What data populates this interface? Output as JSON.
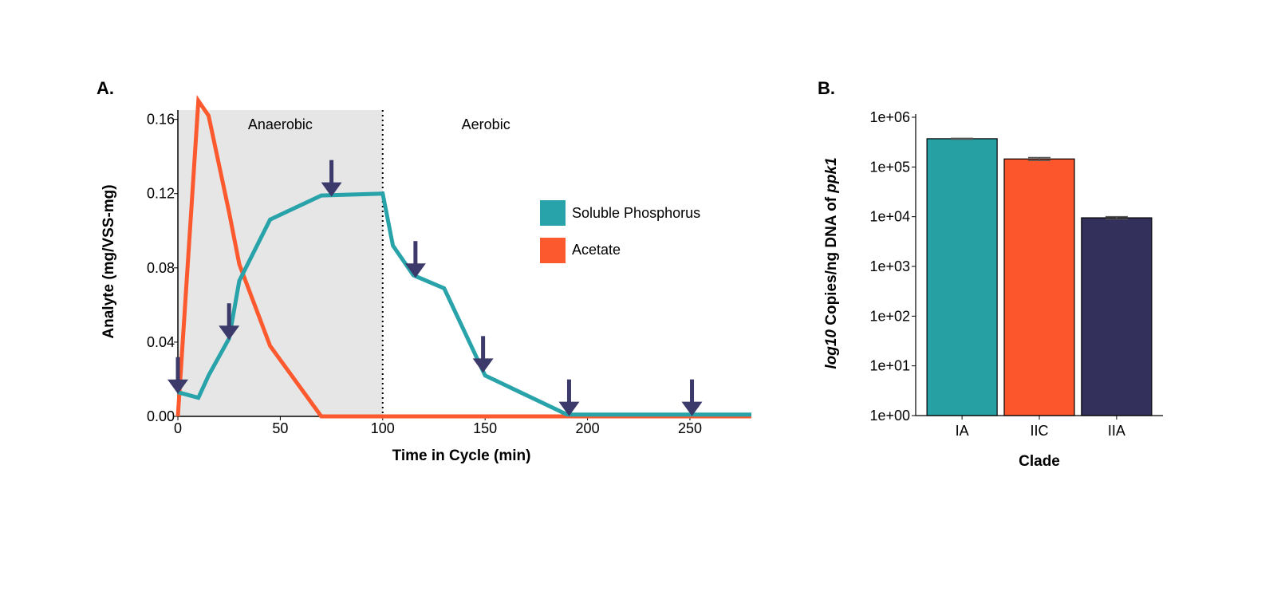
{
  "colors": {
    "phosphorus": "#29a3aa",
    "acetate": "#fc5a2e",
    "arrow": "#3b3a6b",
    "anaerobic_shade": "#e6e6e6",
    "bar_IA": "#26a0a3",
    "bar_IIC": "#fc562c",
    "bar_IIA": "#33305c"
  },
  "chart_data": [
    {
      "panel": "A.",
      "type": "line",
      "xlabel": "Time in Cycle (min)",
      "ylabel": "Analyte (mg/VSS-mg)",
      "xlim": [
        0,
        280
      ],
      "ylim": [
        0,
        0.165
      ],
      "xticks": [
        0,
        50,
        100,
        150,
        200,
        250
      ],
      "xtick_labels": [
        "0",
        "50",
        "100",
        "150",
        "200",
        "250"
      ],
      "yticks": [
        0,
        0.04,
        0.08,
        0.12,
        0.16
      ],
      "ytick_labels": [
        "0.00",
        "0.04",
        "0.08",
        "0.12",
        "0.16"
      ],
      "regions": [
        {
          "label": "Anaerobic",
          "x_range": [
            0,
            100
          ],
          "shaded": true
        },
        {
          "label": "Aerobic",
          "x_range": [
            100,
            280
          ],
          "shaded": false
        }
      ],
      "phase_divider_x": 100,
      "legend_position": "right",
      "series": [
        {
          "name": "Soluble Phosphorus",
          "x": [
            0,
            10,
            15,
            25,
            30,
            45,
            70,
            100,
            105,
            115,
            130,
            150,
            190,
            280
          ],
          "y": [
            0.013,
            0.01,
            0.022,
            0.042,
            0.073,
            0.106,
            0.119,
            0.12,
            0.092,
            0.076,
            0.069,
            0.022,
            0.001,
            0.001
          ]
        },
        {
          "name": "Acetate",
          "x": [
            0,
            10,
            15,
            25,
            30,
            45,
            70,
            280
          ],
          "y": [
            0.0,
            0.17,
            0.162,
            0.11,
            0.082,
            0.038,
            0.0,
            0.0
          ]
        }
      ],
      "sampling_arrows_x": [
        0,
        25,
        75,
        116,
        149,
        191,
        251
      ]
    },
    {
      "panel": "B.",
      "type": "bar",
      "xlabel": "Clade",
      "ylabel": "log10 Copies/ng DNA of ppk1",
      "ylabel_parts": [
        {
          "text": "log10",
          "italic": true
        },
        {
          "text": " Copies/ng DNA of ",
          "italic": false
        },
        {
          "text": "ppk1",
          "italic": true
        }
      ],
      "yscale": "log",
      "ylim": [
        1,
        1000000
      ],
      "yticks": [
        1,
        10,
        100,
        1000,
        10000,
        100000,
        1000000
      ],
      "ytick_labels": [
        "1e+00",
        "1e+01",
        "1e+02",
        "1e+03",
        "1e+04",
        "1e+05",
        "1e+06"
      ],
      "categories": [
        "IA",
        "IIC",
        "IIA"
      ],
      "values": [
        370000,
        145000,
        9500
      ],
      "error": [
        8000,
        10000,
        500
      ]
    }
  ]
}
